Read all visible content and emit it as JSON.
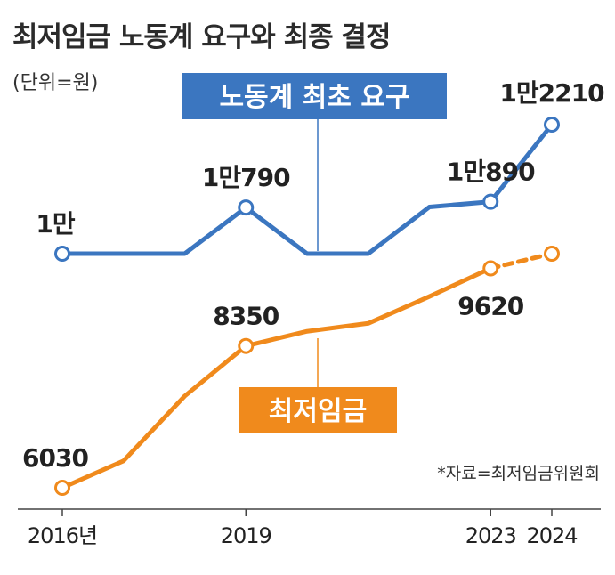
{
  "chart_data": {
    "type": "line",
    "title": "최저임금 노동계 요구와 최종 결정",
    "unit_note": "(단위=원)",
    "source": "*자료=최저임금위원회",
    "x": [
      2016,
      2017,
      2018,
      2019,
      2020,
      2021,
      2022,
      2023,
      2024
    ],
    "x_tick_labels": [
      "2016년",
      "2019",
      "2023",
      "2024"
    ],
    "series": [
      {
        "name": "노동계 최초 요구",
        "color": "#3b76c0",
        "values": [
          10000,
          10000,
          10000,
          10790,
          10000,
          10000,
          10800,
          10890,
          12210
        ],
        "labels": [
          {
            "index": 0,
            "text": "1만"
          },
          {
            "index": 3,
            "text": "1만790"
          },
          {
            "index": 7,
            "text": "1만890"
          },
          {
            "index": 8,
            "text": "1만2210"
          }
        ]
      },
      {
        "name": "최저임금",
        "color": "#f08a1c",
        "values": [
          6030,
          6470,
          7530,
          8350,
          8590,
          8720,
          9160,
          9620,
          9860
        ],
        "labels": [
          {
            "index": 0,
            "text": "6030"
          },
          {
            "index": 3,
            "text": "8350"
          },
          {
            "index": 7,
            "text": "9620"
          }
        ]
      }
    ]
  }
}
